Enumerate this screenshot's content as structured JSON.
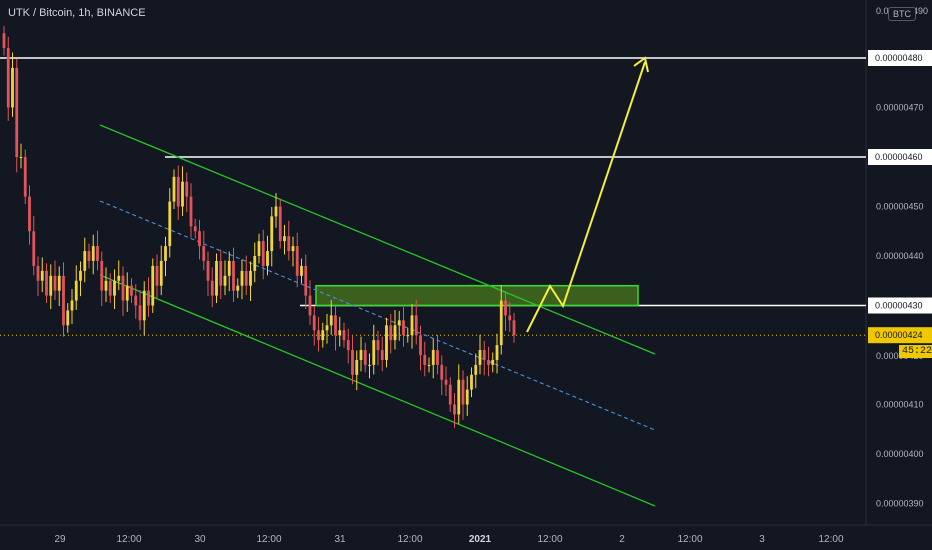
{
  "header": {
    "title": "UTK / Bitcoin, 1h, BINANCE",
    "currency_pill": "BTC"
  },
  "colors": {
    "background": "#131722",
    "bull": "#f0d43a",
    "bear": "#e0545a",
    "channel": "#27c527",
    "midline": "#4a90d9",
    "level": "#ffffff",
    "zone_fill": "#4a7a1c",
    "zone_border": "#33dd33",
    "projection": "#f5ee3a",
    "current_price": "#f0c800"
  },
  "axis": {
    "top_partial": "0.0",
    "top_partial_digits": "490",
    "price_labels": [
      "0.00000470",
      "0.00000450",
      "0.00000440",
      "0.00000410",
      "0.00000400",
      "0.00000390"
    ],
    "level_labels": [
      "0.00000480",
      "0.00000460",
      "0.00000430"
    ],
    "current_price": "0.00000424",
    "current_under": "0.00000420",
    "timer": "45:22",
    "time_labels": [
      {
        "text": "29",
        "bold": false
      },
      {
        "text": "12:00",
        "bold": false
      },
      {
        "text": "30",
        "bold": false
      },
      {
        "text": "12:00",
        "bold": false
      },
      {
        "text": "31",
        "bold": false
      },
      {
        "text": "12:00",
        "bold": false
      },
      {
        "text": "2021",
        "bold": true
      },
      {
        "text": "12:00",
        "bold": false
      },
      {
        "text": "2",
        "bold": false
      },
      {
        "text": "12:00",
        "bold": false
      },
      {
        "text": "3",
        "bold": false
      },
      {
        "text": "12:00",
        "bold": false
      }
    ]
  },
  "chart_data": {
    "type": "candlestick",
    "symbol": "UTK / Bitcoin",
    "interval": "1h",
    "exchange": "BINANCE",
    "y_unit": "BTC",
    "ylim": [
      3.86e-06,
      4.92e-06
    ],
    "x_ticks": [
      "29",
      "12:00",
      "30",
      "12:00",
      "31",
      "12:00",
      "2021",
      "12:00",
      "2",
      "12:00",
      "3",
      "12:00"
    ],
    "horizontal_levels": [
      4.8e-06,
      4.6e-06,
      4.3e-06
    ],
    "current_price": 4.24e-06,
    "demand_zone": [
      4.3e-06,
      4.34e-06
    ],
    "closes": [
      4.82e-06,
      4.7e-06,
      4.78e-06,
      4.6e-06,
      4.6e-06,
      4.52e-06,
      4.45e-06,
      4.38e-06,
      4.35e-06,
      4.37e-06,
      4.32e-06,
      4.36e-06,
      4.33e-06,
      4.36e-06,
      4.26e-06,
      4.29e-06,
      4.31e-06,
      4.35e-06,
      4.37e-06,
      4.41e-06,
      4.39e-06,
      4.42e-06,
      4.39e-06,
      4.33e-06,
      4.35e-06,
      4.32e-06,
      4.35e-06,
      4.36e-06,
      4.31e-06,
      4.34e-06,
      4.32e-06,
      4.3e-06,
      4.27e-06,
      4.33e-06,
      4.3e-06,
      4.38e-06,
      4.34e-06,
      4.39e-06,
      4.42e-06,
      4.51e-06,
      4.56e-06,
      4.5e-06,
      4.55e-06,
      4.52e-06,
      4.46e-06,
      4.45e-06,
      4.42e-06,
      4.39e-06,
      4.35e-06,
      4.32e-06,
      4.39e-06,
      4.34e-06,
      4.36e-06,
      4.39e-06,
      4.33e-06,
      4.34e-06,
      4.37e-06,
      4.34e-06,
      4.37e-06,
      4.4e-06,
      4.43e-06,
      4.38e-06,
      4.41e-06,
      4.48e-06,
      4.5e-06,
      4.43e-06,
      4.44e-06,
      4.41e-06,
      4.42e-06,
      4.36e-06,
      4.38e-06,
      4.32e-06,
      4.28e-06,
      4.25e-06,
      4.23e-06,
      4.25e-06,
      4.26e-06,
      4.28e-06,
      4.24e-06,
      4.25e-06,
      4.23e-06,
      4.21e-06,
      4.16e-06,
      4.19e-06,
      4.21e-06,
      4.18e-06,
      4.18e-06,
      4.23e-06,
      4.21e-06,
      4.19e-06,
      4.26e-06,
      4.23e-06,
      4.26e-06,
      4.27e-06,
      4.24e-06,
      4.24e-06,
      4.28e-06,
      4.24e-06,
      4.2e-06,
      4.18e-06,
      4.18e-06,
      4.21e-06,
      4.18e-06,
      4.15e-06,
      4.14e-06,
      4.1e-06,
      4.08e-06,
      4.15e-06,
      4.1e-06,
      4.13e-06,
      4.16e-06,
      4.18e-06,
      4.21e-06,
      4.19e-06,
      4.18e-06,
      4.19e-06,
      4.22e-06,
      4.31e-06,
      4.28e-06,
      4.27e-06,
      4.24e-06
    ]
  }
}
